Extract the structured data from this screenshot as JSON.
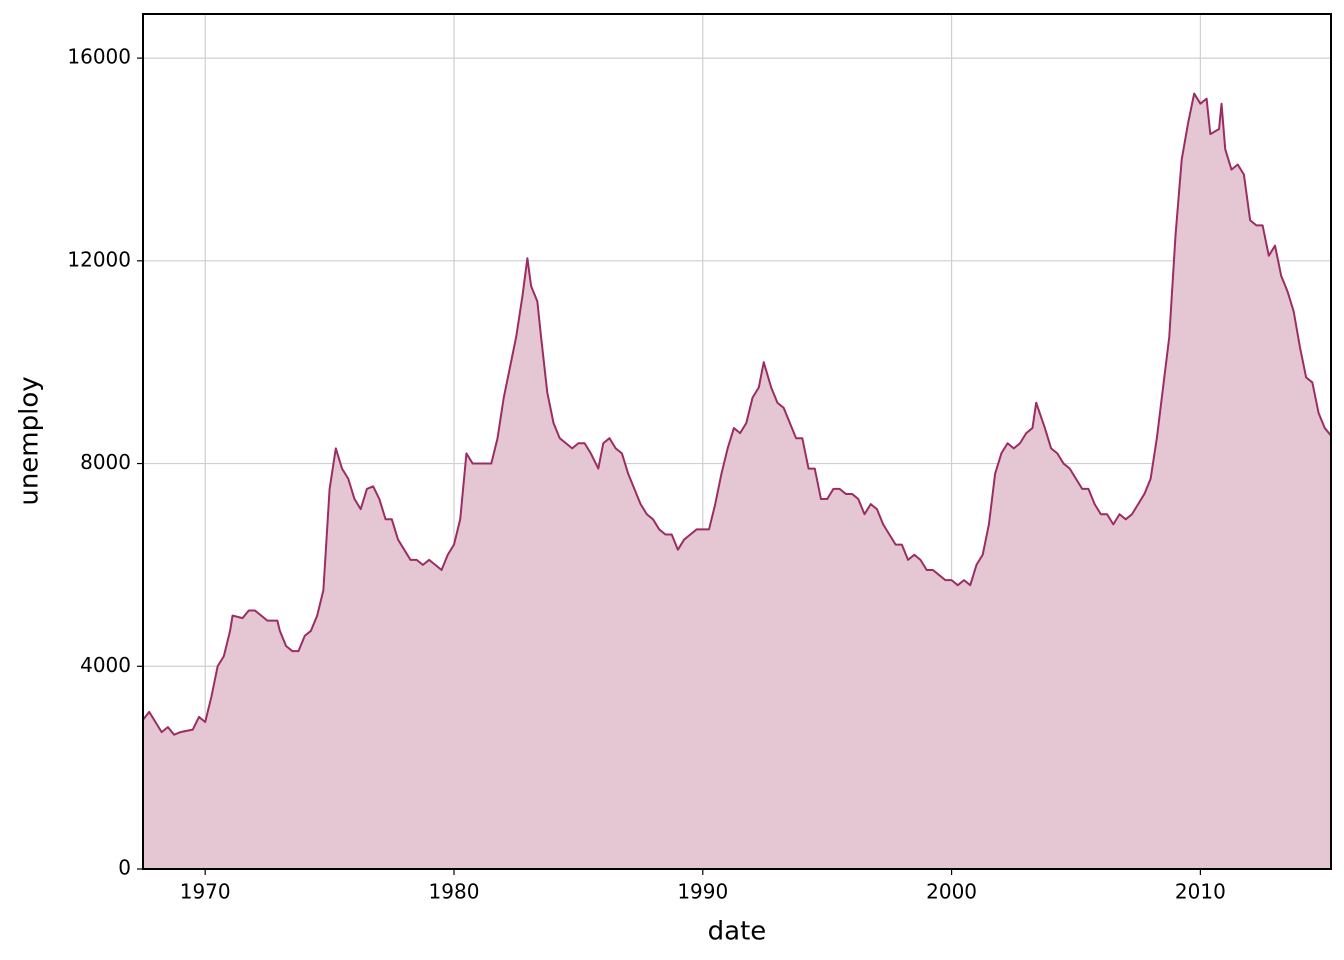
{
  "chart_data": {
    "type": "area",
    "x_label": "date",
    "y_label": "unemploy",
    "x": [
      1967.5,
      1967.75,
      1968.0,
      1968.25,
      1968.5,
      1968.75,
      1969.0,
      1969.5,
      1969.75,
      1970.0,
      1970.25,
      1970.5,
      1970.75,
      1971.0,
      1971.1,
      1971.5,
      1971.75,
      1972.0,
      1972.5,
      1972.9,
      1973.0,
      1973.25,
      1973.5,
      1973.75,
      1974.0,
      1974.25,
      1974.5,
      1974.75,
      1975.0,
      1975.25,
      1975.5,
      1975.75,
      1976.0,
      1976.25,
      1976.5,
      1976.75,
      1977.0,
      1977.25,
      1977.5,
      1977.75,
      1978.0,
      1978.25,
      1978.5,
      1978.75,
      1979.0,
      1979.25,
      1979.5,
      1979.75,
      1980.0,
      1980.25,
      1980.5,
      1980.75,
      1981.0,
      1981.25,
      1981.5,
      1981.75,
      1982.0,
      1982.25,
      1982.5,
      1982.75,
      1982.95,
      1983.1,
      1983.35,
      1983.5,
      1983.75,
      1984.0,
      1984.25,
      1984.5,
      1984.75,
      1985.0,
      1985.25,
      1985.5,
      1985.8,
      1986.0,
      1986.25,
      1986.5,
      1986.75,
      1987.0,
      1987.25,
      1987.5,
      1987.75,
      1988.0,
      1988.25,
      1988.5,
      1988.75,
      1989.0,
      1989.25,
      1989.5,
      1989.75,
      1990.0,
      1990.25,
      1990.5,
      1990.75,
      1991.0,
      1991.25,
      1991.5,
      1991.75,
      1992.0,
      1992.25,
      1992.45,
      1992.75,
      1993.0,
      1993.25,
      1993.5,
      1993.75,
      1994.0,
      1994.25,
      1994.5,
      1994.75,
      1995.0,
      1995.25,
      1995.5,
      1995.75,
      1996.0,
      1996.25,
      1996.5,
      1996.75,
      1997.0,
      1997.25,
      1997.5,
      1997.75,
      1998.0,
      1998.25,
      1998.5,
      1998.75,
      1999.0,
      1999.25,
      1999.5,
      1999.75,
      2000.0,
      2000.25,
      2000.5,
      2000.75,
      2001.0,
      2001.25,
      2001.5,
      2001.75,
      2002.0,
      2002.25,
      2002.5,
      2002.75,
      2003.0,
      2003.25,
      2003.4,
      2003.75,
      2004.0,
      2004.25,
      2004.5,
      2004.75,
      2005.0,
      2005.25,
      2005.5,
      2005.75,
      2006.0,
      2006.25,
      2006.5,
      2006.75,
      2007.0,
      2007.25,
      2007.5,
      2007.75,
      2008.0,
      2008.25,
      2008.5,
      2008.75,
      2009.0,
      2009.25,
      2009.5,
      2009.75,
      2010.0,
      2010.25,
      2010.4,
      2010.75,
      2010.85,
      2011.0,
      2011.25,
      2011.5,
      2011.75,
      2012.0,
      2012.25,
      2012.5,
      2012.75,
      2013.0,
      2013.25,
      2013.5,
      2013.75,
      2014.0,
      2014.25,
      2014.5,
      2014.75,
      2015.0,
      2015.25
    ],
    "values": [
      2944,
      3100,
      2900,
      2700,
      2800,
      2650,
      2700,
      2750,
      3000,
      2900,
      3400,
      4000,
      4200,
      4700,
      5000,
      4950,
      5100,
      5100,
      4900,
      4900,
      4700,
      4400,
      4300,
      4300,
      4600,
      4700,
      5000,
      5500,
      7500,
      8300,
      7900,
      7700,
      7300,
      7100,
      7500,
      7550,
      7300,
      6900,
      6900,
      6500,
      6300,
      6100,
      6100,
      6000,
      6100,
      6000,
      5900,
      6200,
      6400,
      6900,
      8200,
      8000,
      8000,
      8000,
      8000,
      8500,
      9300,
      9900,
      10500,
      11300,
      12050,
      11500,
      11200,
      10500,
      9400,
      8800,
      8500,
      8400,
      8300,
      8400,
      8400,
      8200,
      7900,
      8400,
      8500,
      8300,
      8200,
      7800,
      7500,
      7200,
      7000,
      6900,
      6700,
      6600,
      6600,
      6300,
      6500,
      6600,
      6700,
      6700,
      6700,
      7200,
      7800,
      8300,
      8700,
      8600,
      8800,
      9300,
      9500,
      10000,
      9500,
      9200,
      9100,
      8800,
      8500,
      8500,
      7900,
      7900,
      7300,
      7300,
      7500,
      7500,
      7400,
      7400,
      7300,
      7000,
      7200,
      7100,
      6800,
      6600,
      6400,
      6400,
      6100,
      6200,
      6100,
      5900,
      5900,
      5800,
      5700,
      5700,
      5600,
      5700,
      5600,
      6000,
      6200,
      6800,
      7800,
      8200,
      8400,
      8300,
      8400,
      8600,
      8700,
      9200,
      8700,
      8300,
      8200,
      8000,
      7900,
      7700,
      7500,
      7500,
      7200,
      7000,
      7000,
      6800,
      7000,
      6900,
      7000,
      7200,
      7400,
      7700,
      8500,
      9500,
      10500,
      12500,
      14000,
      14700,
      15300,
      15100,
      15200,
      14500,
      14600,
      15100,
      14200,
      13800,
      13900,
      13700,
      12800,
      12700,
      12700,
      12100,
      12300,
      11700,
      11400,
      11000,
      10300,
      9700,
      9600,
      9000,
      8700,
      8550
    ],
    "fill": "#e5c7d4",
    "color": "#9b2d64",
    "xlim": [
      1967.5,
      2015.25
    ],
    "xticks": [
      1970,
      1980,
      1990,
      2000,
      2010
    ],
    "ylim": [
      0,
      16870
    ],
    "yticks": [
      0,
      4000,
      8000,
      12000,
      16000
    ],
    "grid": true
  }
}
